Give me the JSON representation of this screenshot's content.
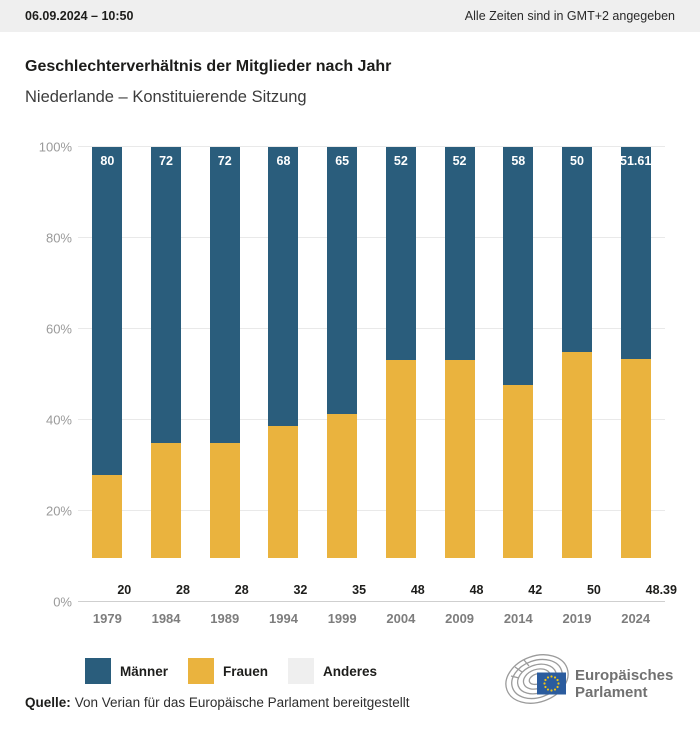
{
  "topbar": {
    "datetime": "06.09.2024 – 10:50",
    "timezone_note": "Alle Zeiten sind in GMT+2 angegeben"
  },
  "title": "Geschlechterverhältnis der Mitglieder nach Jahr",
  "subtitle": "Niederlande – Konstituierende Sitzung",
  "chart_data": {
    "type": "bar",
    "stacked": true,
    "title": "Geschlechterverhältnis der Mitglieder nach Jahr",
    "subtitle": "Niederlande – Konstituierende Sitzung",
    "categories": [
      "1979",
      "1984",
      "1989",
      "1994",
      "1999",
      "2004",
      "2009",
      "2014",
      "2019",
      "2024"
    ],
    "series": [
      {
        "name": "Männer",
        "color": "#2a5d7c",
        "label_color": "#ffffff",
        "values": [
          80,
          72,
          72,
          68,
          65,
          52,
          52,
          58,
          50,
          51.61
        ]
      },
      {
        "name": "Frauen",
        "color": "#eab33e",
        "label_color": "#1d1d1b",
        "values": [
          20,
          28,
          28,
          32,
          35,
          48,
          48,
          42,
          50,
          48.39
        ]
      },
      {
        "name": "Anderes",
        "color": "#efefef",
        "label_color": "#1d1d1b",
        "values": [
          0,
          0,
          0,
          0,
          0,
          0,
          0,
          0,
          0,
          0
        ]
      }
    ],
    "ylim": [
      0,
      100
    ],
    "yticks": [
      "0%",
      "20%",
      "40%",
      "60%",
      "80%",
      "100%"
    ],
    "grid": true,
    "legend_position": "bottom"
  },
  "source": {
    "label": "Quelle:",
    "text": "Von Verian für das Europäische Parlament bereitgestellt"
  },
  "logo": {
    "line1": "Europäisches",
    "line2": "Parlament"
  },
  "colors": {
    "maenner_blue": "#2a5d7c",
    "frauen_yellow": "#eab33e",
    "anderes_gray": "#efefef",
    "topbar_bg": "#efefef",
    "gridline": "#e9e9e9",
    "axis_text": "#9a9a9a"
  }
}
